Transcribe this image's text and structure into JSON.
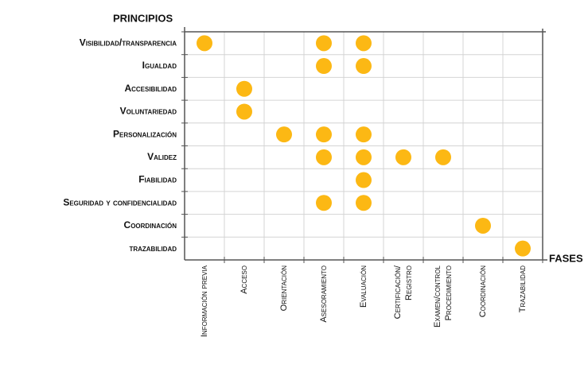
{
  "chart_data": {
    "type": "matrix",
    "y_title": "PRINCIPIOS",
    "x_title": "FASES",
    "rows": [
      "Visibilidad/transparencia",
      "Igualdad",
      "Accesibilidad",
      "Voluntariedad",
      "Personalización",
      "Validez",
      "Fiabilidad",
      "Seguridad y confidencialidad",
      "Coordinación",
      "trazabilidad"
    ],
    "columns": [
      [
        "Información previa"
      ],
      [
        "Acceso"
      ],
      [
        "Orientación"
      ],
      [
        "Asesoramiento"
      ],
      [
        "Evaluación"
      ],
      [
        "Certificación/",
        "Registro"
      ],
      [
        "Examen/control",
        "Procedimiento"
      ],
      [
        "Coordinación"
      ],
      [
        "Trazabilidad"
      ]
    ],
    "marks": [
      [
        true,
        false,
        false,
        true,
        true,
        false,
        false,
        false,
        false
      ],
      [
        false,
        false,
        false,
        true,
        true,
        false,
        false,
        false,
        false
      ],
      [
        false,
        true,
        false,
        false,
        false,
        false,
        false,
        false,
        false
      ],
      [
        false,
        true,
        false,
        false,
        false,
        false,
        false,
        false,
        false
      ],
      [
        false,
        false,
        true,
        true,
        true,
        false,
        false,
        false,
        false
      ],
      [
        false,
        false,
        false,
        true,
        true,
        true,
        true,
        false,
        false
      ],
      [
        false,
        false,
        false,
        false,
        true,
        false,
        false,
        false,
        false
      ],
      [
        false,
        false,
        false,
        true,
        true,
        false,
        false,
        false,
        false
      ],
      [
        false,
        false,
        false,
        false,
        false,
        false,
        false,
        true,
        false
      ],
      [
        false,
        false,
        false,
        false,
        false,
        false,
        false,
        false,
        true
      ]
    ],
    "color": "#fcb814",
    "grid": true
  }
}
